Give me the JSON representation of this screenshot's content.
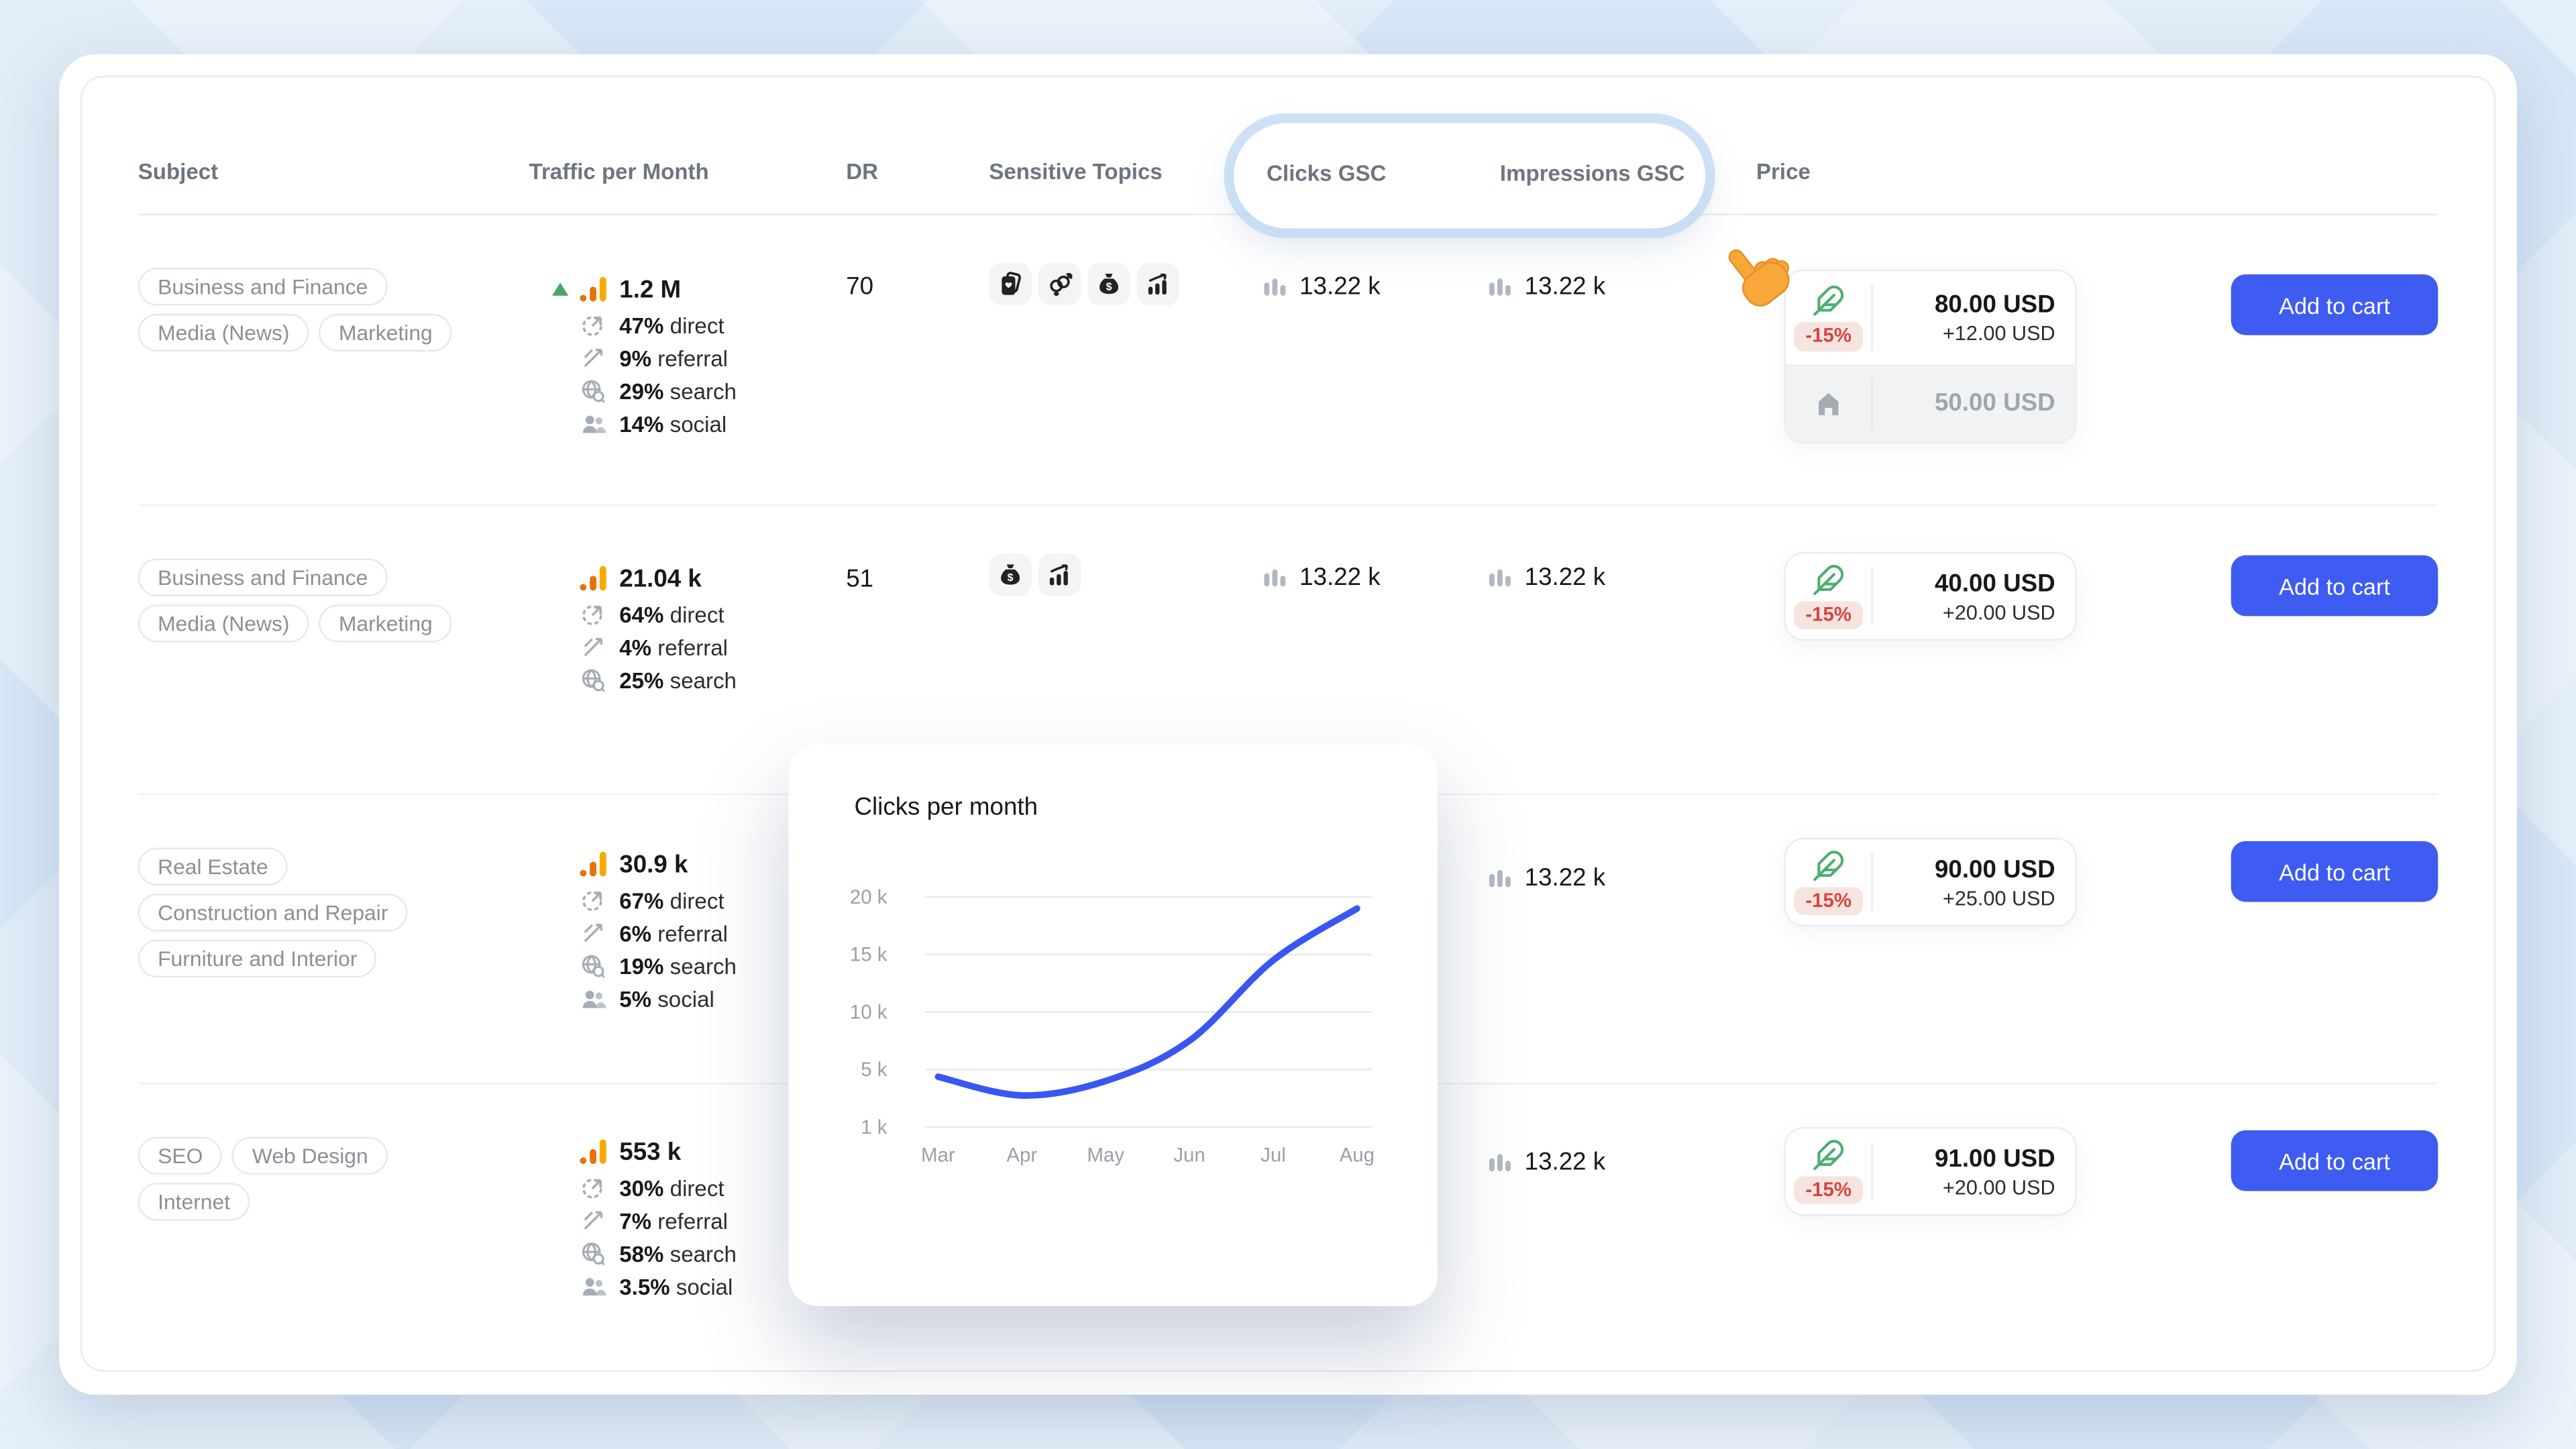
{
  "header": {
    "subject": "Subject",
    "traffic": "Traffic per Month",
    "dr": "DR",
    "sensitive": "Sensitive Topics",
    "clicks": "Clicks GSC",
    "impressions": "Impressions GSC",
    "price": "Price"
  },
  "rows": [
    {
      "tags": [
        "Business and Finance",
        "Media (News)",
        "Marketing"
      ],
      "traffic": {
        "value": "1.2 M",
        "trend": "up",
        "sources": [
          {
            "pct": "47%",
            "label": "direct"
          },
          {
            "pct": "9%",
            "label": "referral"
          },
          {
            "pct": "29%",
            "label": "search"
          },
          {
            "pct": "14%",
            "label": "social"
          }
        ]
      },
      "dr": "70",
      "sensitive_topics": [
        "gambling",
        "dating",
        "loans",
        "trading"
      ],
      "clicks": "13.22 k",
      "impressions": "13.22 k",
      "price": {
        "discount": "-15%",
        "main": "80.00 USD",
        "extra": "+12.00 USD",
        "secondary": "50.00 USD"
      },
      "cta": "Add to cart"
    },
    {
      "tags": [
        "Business and Finance",
        "Media (News)",
        "Marketing"
      ],
      "traffic": {
        "value": "21.04 k",
        "sources": [
          {
            "pct": "64%",
            "label": "direct"
          },
          {
            "pct": "4%",
            "label": "referral"
          },
          {
            "pct": "25%",
            "label": "search"
          }
        ]
      },
      "dr": "51",
      "sensitive_topics": [
        "loans",
        "trading"
      ],
      "clicks": "13.22 k",
      "impressions": "13.22 k",
      "price": {
        "discount": "-15%",
        "main": "40.00 USD",
        "extra": "+20.00 USD"
      },
      "cta": "Add to cart"
    },
    {
      "tags": [
        "Real Estate",
        "Construction and Repair",
        "Furniture and Interior"
      ],
      "traffic": {
        "value": "30.9 k",
        "sources": [
          {
            "pct": "67%",
            "label": "direct"
          },
          {
            "pct": "6%",
            "label": "referral"
          },
          {
            "pct": "19%",
            "label": "search"
          },
          {
            "pct": "5%",
            "label": "social"
          }
        ]
      },
      "impressions": "13.22 k",
      "price": {
        "discount": "-15%",
        "main": "90.00 USD",
        "extra": "+25.00 USD"
      },
      "cta": "Add to cart"
    },
    {
      "tags": [
        "SEO",
        "Web Design",
        "Internet"
      ],
      "traffic": {
        "value": "553 k",
        "sources": [
          {
            "pct": "30%",
            "label": "direct"
          },
          {
            "pct": "7%",
            "label": "referral"
          },
          {
            "pct": "58%",
            "label": "search"
          },
          {
            "pct": "3.5%",
            "label": "social"
          }
        ]
      },
      "impressions": "13.22 k",
      "price": {
        "discount": "-15%",
        "main": "91.00 USD",
        "extra": "+20.00 USD"
      },
      "cta": "Add to cart"
    }
  ],
  "chart_popup": {
    "title": "Clicks per month"
  },
  "chart_data": {
    "type": "line",
    "title": "Clicks per month",
    "x": [
      "Mar",
      "Apr",
      "May",
      "Jun",
      "Jul",
      "Aug"
    ],
    "series": [
      {
        "name": "Clicks per month",
        "values": [
          4500,
          3200,
          4200,
          7500,
          14500,
          19000
        ]
      }
    ],
    "y_ticks": [
      "20 k",
      "15 k",
      "10 k",
      "5 k",
      "1 k"
    ],
    "y_tick_values": [
      20000,
      15000,
      10000,
      5000,
      1000
    ],
    "line_color": "#3857f2",
    "grid": true,
    "legend": "none"
  },
  "icons": {
    "trend_up": "triangle-up",
    "traffic": "analytics-bars",
    "direct": "target-arrow",
    "referral": "diagonal-arrows",
    "search": "globe-magnifier",
    "social": "two-users",
    "metric": "mini-bar-chart",
    "gambling": "playing-cards",
    "dating": "gender-symbols",
    "loans": "money-bag",
    "trading": "growth-chart",
    "discount": "feather-leaf",
    "base_price": "house",
    "cursor": "pointing-hand"
  },
  "colors": {
    "accent_blue": "#3e5bf2",
    "chart_line": "#3857f2",
    "discount_red": "#d8453f",
    "leaf_green": "#4dae70",
    "traffic_orange": "#f9ab00",
    "trend_green": "#4ba767",
    "background": "#d7e7f6",
    "highlight_ring": "#bad6f2"
  }
}
